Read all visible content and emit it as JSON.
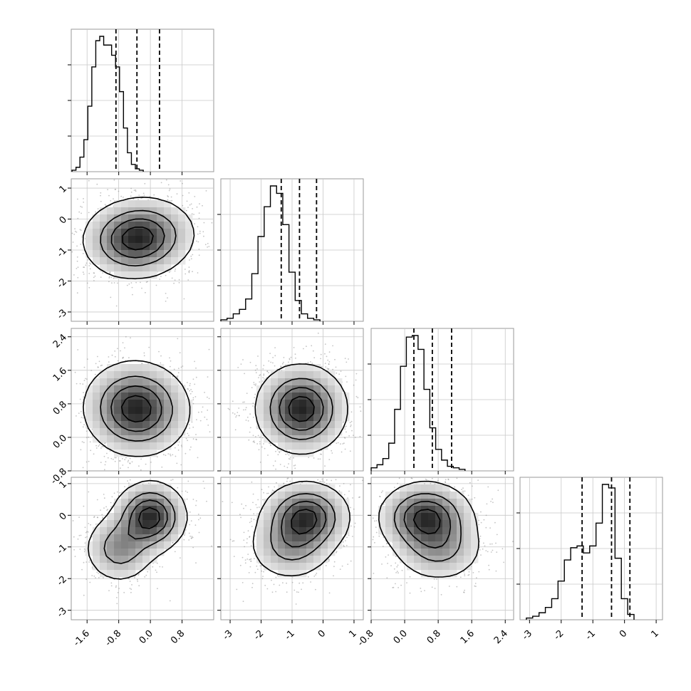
{
  "chart_data": {
    "type": "corner",
    "parameters": 4,
    "grid": true,
    "axes": [
      {
        "range": [
          -2.0,
          1.6
        ],
        "ticks": [
          -1.6,
          -0.8,
          0.0,
          0.8
        ],
        "tick_labels": [
          "-1.6",
          "-0.8",
          "0.0",
          "0.8"
        ]
      },
      {
        "range": [
          -3.3,
          1.3
        ],
        "ticks": [
          -3,
          -2,
          -1,
          0,
          1
        ],
        "tick_labels": [
          "-3",
          "-2",
          "-1",
          "0",
          "1"
        ]
      },
      {
        "range": [
          -0.8,
          2.6
        ],
        "ticks": [
          -0.8,
          0.0,
          0.8,
          1.6,
          2.4
        ],
        "tick_labels": [
          "-0.8",
          "0.0",
          "0.8",
          "1.6",
          "2.4"
        ]
      },
      {
        "range": [
          -3.3,
          1.2
        ],
        "ticks": [
          -3,
          -2,
          -1,
          0,
          1
        ],
        "tick_labels": [
          "-3",
          "-2",
          "-1",
          "0",
          "1"
        ]
      }
    ],
    "histograms": [
      {
        "parameter": 0,
        "quantiles": [
          -0.87,
          -0.34,
          0.23
        ],
        "edges_start": -1.98,
        "bin_width": 0.1,
        "counts": [
          1,
          3,
          10,
          22,
          45,
          72,
          90,
          93,
          87,
          87,
          80,
          72,
          55,
          30,
          13,
          5,
          2,
          1
        ]
      },
      {
        "parameter": 1,
        "quantiles": [
          -1.35,
          -0.76,
          -0.21
        ],
        "edges_start": -3.3,
        "bin_width": 0.2,
        "counts": [
          1,
          2,
          5,
          8,
          15,
          32,
          57,
          77,
          91,
          86,
          65,
          33,
          14,
          5,
          2,
          1
        ]
      },
      {
        "parameter": 2,
        "quantiles": [
          0.22,
          0.66,
          1.12
        ],
        "edges_start": -0.8,
        "bin_width": 0.14,
        "counts": [
          2,
          4,
          8,
          18,
          40,
          68,
          87,
          88,
          79,
          53,
          28,
          14,
          7,
          3,
          2,
          1
        ]
      },
      {
        "parameter": 3,
        "quantiles": [
          -1.34,
          -0.41,
          0.17
        ],
        "edges_start": -3.1,
        "bin_width": 0.2,
        "counts": [
          1,
          2,
          4,
          7,
          12,
          22,
          34,
          41,
          42,
          38,
          42,
          55,
          77,
          75,
          35,
          12,
          3
        ]
      }
    ],
    "contour_panels": [
      {
        "x_param": 0,
        "y_param": 1,
        "modes": [
          {
            "x": -0.5,
            "y": -0.7,
            "w": 1.0
          },
          {
            "x": 0.05,
            "y": -0.45,
            "w": 0.55
          }
        ],
        "spread": [
          0.62,
          0.62
        ]
      },
      {
        "x_param": 0,
        "y_param": 2,
        "modes": [
          {
            "x": -0.5,
            "y": 0.72,
            "w": 1.0
          },
          {
            "x": -0.1,
            "y": 0.62,
            "w": 0.6
          }
        ],
        "spread": [
          0.62,
          0.55
        ]
      },
      {
        "x_param": 1,
        "y_param": 2,
        "modes": [
          {
            "x": -0.7,
            "y": 0.68,
            "w": 1.0
          }
        ],
        "spread": [
          0.72,
          0.52
        ]
      },
      {
        "x_param": 0,
        "y_param": 3,
        "modes": [
          {
            "x": 0.0,
            "y": -0.05,
            "w": 1.0
          },
          {
            "x": -0.78,
            "y": -1.05,
            "w": 0.55
          }
        ],
        "spread": [
          0.45,
          0.55
        ]
      },
      {
        "x_param": 1,
        "y_param": 3,
        "modes": [
          {
            "x": -0.55,
            "y": -0.05,
            "w": 1.0
          },
          {
            "x": -1.05,
            "y": -1.0,
            "w": 0.5
          }
        ],
        "spread": [
          0.7,
          0.55
        ]
      },
      {
        "x_param": 2,
        "y_param": 3,
        "modes": [
          {
            "x": 0.5,
            "y": -0.05,
            "w": 1.0
          },
          {
            "x": 0.82,
            "y": -1.05,
            "w": 0.5
          }
        ],
        "spread": [
          0.55,
          0.55
        ]
      }
    ]
  }
}
